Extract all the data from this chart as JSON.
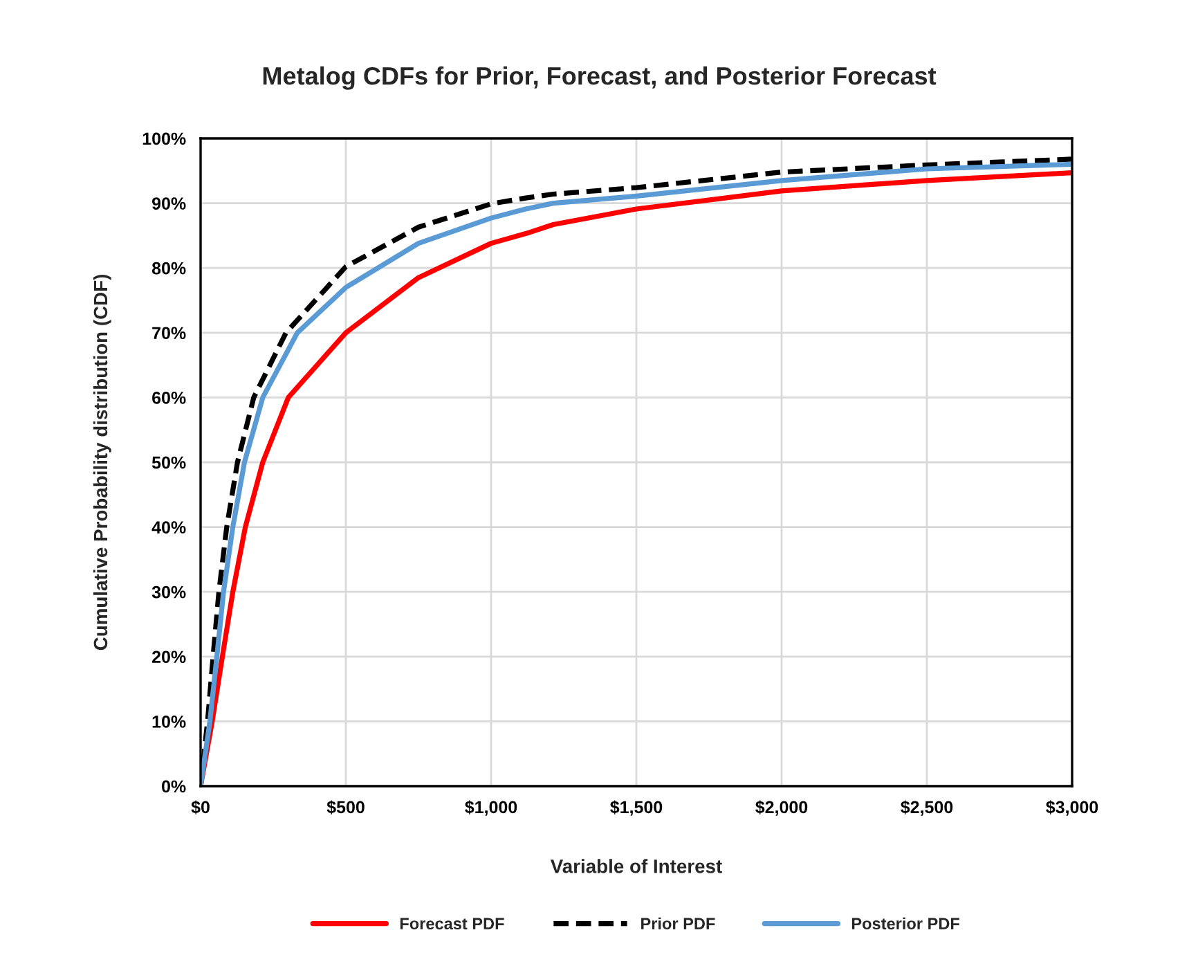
{
  "chart_data": {
    "type": "line",
    "title": "Metalog CDFs for Prior, Forecast, and Posterior Forecast",
    "xlabel": "Variable of Interest",
    "ylabel": "Cumulative Probability distribution (CDF)",
    "xlim": [
      0,
      3000
    ],
    "xticks": [
      {
        "value": 0,
        "label": "$0"
      },
      {
        "value": 500,
        "label": "$500"
      },
      {
        "value": 1000,
        "label": "$1,000"
      },
      {
        "value": 1500,
        "label": "$1,500"
      },
      {
        "value": 2000,
        "label": "$2,000"
      },
      {
        "value": 2500,
        "label": "$2,500"
      },
      {
        "value": 3000,
        "label": "$3,000"
      }
    ],
    "ylim": [
      0,
      100
    ],
    "yticks": [
      {
        "value": 0,
        "label": "0%"
      },
      {
        "value": 10,
        "label": "10%"
      },
      {
        "value": 20,
        "label": "20%"
      },
      {
        "value": 30,
        "label": "30%"
      },
      {
        "value": 40,
        "label": "40%"
      },
      {
        "value": 50,
        "label": "50%"
      },
      {
        "value": 60,
        "label": "60%"
      },
      {
        "value": 70,
        "label": "70%"
      },
      {
        "value": 80,
        "label": "80%"
      },
      {
        "value": 90,
        "label": "90%"
      },
      {
        "value": 100,
        "label": "100%"
      }
    ],
    "grid": true,
    "legend": "bottom",
    "marker": "none",
    "series": [
      {
        "name": "Forecast PDF",
        "color": "#ff0000",
        "line_style": "solid",
        "x": [
          0,
          40,
          75,
          111,
          154,
          214,
          302,
          500,
          750,
          1000,
          1119,
          1214,
          1500,
          2000,
          2500,
          3000
        ],
        "values": [
          0,
          10,
          20,
          30,
          40,
          50,
          60,
          70,
          78.5,
          83.8,
          85.3,
          86.7,
          89.1,
          91.9,
          93.5,
          94.7
        ]
      },
      {
        "name": "Prior PDF",
        "color": "#000000",
        "line_style": "dashed",
        "x": [
          0,
          24,
          43,
          63,
          90,
          127,
          183,
          294,
          500,
          750,
          1000,
          1119,
          1214,
          1500,
          2000,
          2500,
          3000
        ],
        "values": [
          0,
          10,
          20,
          30,
          40,
          50,
          60,
          70,
          80.2,
          86.3,
          89.9,
          90.8,
          91.4,
          92.4,
          94.8,
          95.9,
          96.8
        ]
      },
      {
        "name": "Posterior PDF",
        "color": "#5b9bd5",
        "line_style": "solid",
        "x": [
          0,
          32,
          56,
          79,
          111,
          151,
          214,
          333,
          500,
          750,
          1000,
          1119,
          1214,
          1500,
          2000,
          2500,
          3000
        ],
        "values": [
          0,
          10,
          20,
          30,
          40,
          50,
          60,
          70,
          77.0,
          83.8,
          87.7,
          89.1,
          90.0,
          91.1,
          93.5,
          95.3,
          96.0
        ]
      }
    ]
  }
}
